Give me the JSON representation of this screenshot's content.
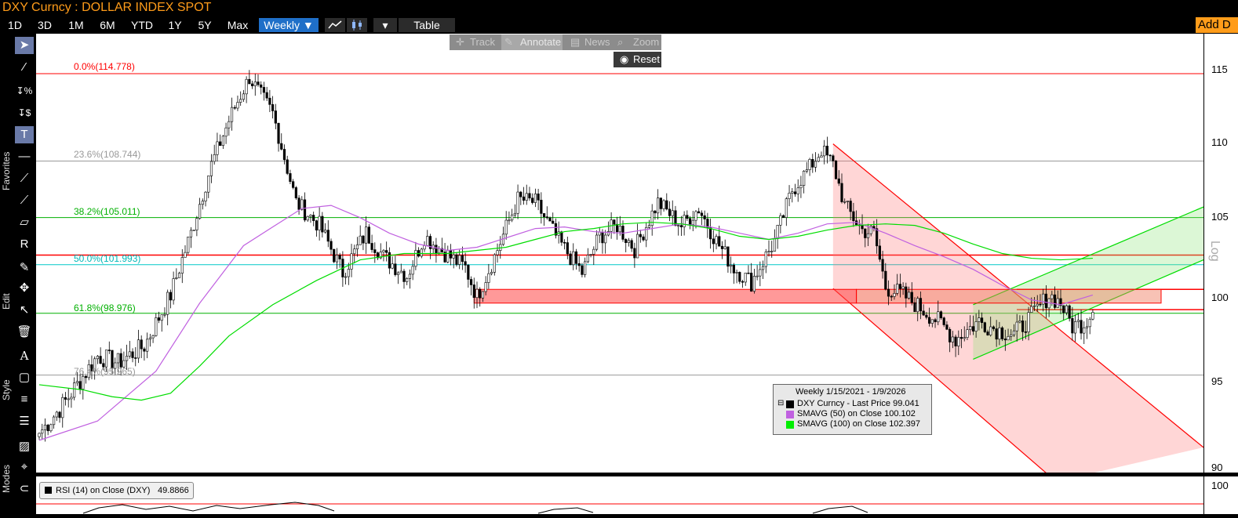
{
  "header": {
    "title": "DXY Curncy : DOLLAR INDEX SPOT",
    "add_data_label": "Add D"
  },
  "toolbar": {
    "periods": [
      "1D",
      "3D",
      "1M",
      "6M",
      "YTD",
      "1Y",
      "5Y",
      "Max"
    ],
    "frequency": "Weekly ▼",
    "line_icon": "line-chart-icon",
    "candle_icon": "candlestick-icon",
    "more": "▾",
    "table_label": "Table"
  },
  "annotate_bar": {
    "track": "Track",
    "annotate": "Annotate",
    "news": "News",
    "zoom": "Zoom",
    "reset": "Reset"
  },
  "side": {
    "favorites": "Favorites",
    "edit": "Edit",
    "style": "Style",
    "modes": "Modes"
  },
  "chart_data": {
    "type": "candlestick",
    "title": "Weekly 1/15/2021 - 1/9/2026",
    "y_scale": "Log",
    "ylim": [
      89.5,
      118
    ],
    "y_ticks": [
      "115",
      "110",
      "105",
      "100",
      "95",
      "90"
    ],
    "fibonacci": [
      {
        "label": "0.0%(114.778)",
        "value": 114.778,
        "color": "#ff0000"
      },
      {
        "label": "23.6%(108.744)",
        "value": 108.744,
        "color": "#999999"
      },
      {
        "label": "38.2%(105.011)",
        "value": 105.011,
        "color": "#00b000"
      },
      {
        "label": "50.0%(101.993)",
        "value": 101.993,
        "color": "#00c8c8"
      },
      {
        "label": "61.8%(98.976)",
        "value": 98.976,
        "color": "#00b000"
      },
      {
        "label": "76.4%(95.265)",
        "value": 95.265,
        "color": "#999999"
      }
    ],
    "horizontal_lines": [
      102.6,
      100.45,
      99.2
    ],
    "series": [
      {
        "name": "DXY Curncy - Last Price",
        "last": "99.041",
        "color": "#000000"
      },
      {
        "name": "SMAVG (50)  on Close",
        "last": "100.102",
        "color": "#c060e0"
      },
      {
        "name": "SMAVG (100)  on Close",
        "last": "102.397",
        "color": "#00dd00"
      }
    ],
    "anchors": [
      [
        0,
        91.9
      ],
      [
        8,
        93.5
      ],
      [
        20,
        96.4
      ],
      [
        27,
        96
      ],
      [
        36,
        97
      ],
      [
        45,
        100.1
      ],
      [
        52,
        104
      ],
      [
        59,
        108.5
      ],
      [
        66,
        112
      ],
      [
        72,
        114.5
      ],
      [
        80,
        112
      ],
      [
        88,
        106
      ],
      [
        96,
        104.5
      ],
      [
        104,
        101.5
      ],
      [
        112,
        104
      ],
      [
        118,
        102.5
      ],
      [
        126,
        101.3
      ],
      [
        132,
        103.8
      ],
      [
        140,
        102.6
      ],
      [
        146,
        101.8
      ],
      [
        150,
        100
      ],
      [
        156,
        102.5
      ],
      [
        164,
        106.2
      ],
      [
        170,
        106
      ],
      [
        178,
        103.5
      ],
      [
        186,
        101.5
      ],
      [
        192,
        103.8
      ],
      [
        198,
        104.5
      ],
      [
        204,
        103
      ],
      [
        212,
        106
      ],
      [
        220,
        104.5
      ],
      [
        226,
        105.6
      ],
      [
        232,
        103.5
      ],
      [
        238,
        101.8
      ],
      [
        244,
        100.9
      ],
      [
        252,
        103.5
      ],
      [
        258,
        106.8
      ],
      [
        264,
        108.3
      ],
      [
        268,
        109.5
      ],
      [
        272,
        108.5
      ],
      [
        276,
        105.8
      ],
      [
        282,
        104.2
      ],
      [
        286,
        104
      ],
      [
        290,
        100.6
      ],
      [
        296,
        100.1
      ],
      [
        302,
        99.3
      ],
      [
        308,
        98.5
      ],
      [
        314,
        97.4
      ],
      [
        322,
        98.5
      ],
      [
        328,
        98
      ],
      [
        334,
        97.7
      ],
      [
        340,
        98.8
      ],
      [
        346,
        100.1
      ],
      [
        350,
        99.6
      ],
      [
        354,
        98.2
      ],
      [
        358,
        98.4
      ],
      [
        361,
        99.04
      ]
    ],
    "sma50": [
      [
        0,
        91.5
      ],
      [
        20,
        92.6
      ],
      [
        40,
        95.5
      ],
      [
        55,
        99.6
      ],
      [
        70,
        103.2
      ],
      [
        80,
        104.4
      ],
      [
        90,
        105.6
      ],
      [
        100,
        105.8
      ],
      [
        110,
        105
      ],
      [
        120,
        104
      ],
      [
        130,
        103.3
      ],
      [
        140,
        102.9
      ],
      [
        150,
        103.1
      ],
      [
        160,
        103.7
      ],
      [
        170,
        104.3
      ],
      [
        180,
        104.4
      ],
      [
        190,
        104.1
      ],
      [
        200,
        104
      ],
      [
        210,
        104.3
      ],
      [
        220,
        104.6
      ],
      [
        230,
        104.4
      ],
      [
        240,
        104
      ],
      [
        250,
        103.6
      ],
      [
        260,
        104
      ],
      [
        270,
        104.6
      ],
      [
        280,
        104.7
      ],
      [
        290,
        104
      ],
      [
        300,
        103.2
      ],
      [
        310,
        102.5
      ],
      [
        320,
        101.7
      ],
      [
        330,
        100.7
      ],
      [
        340,
        99.8
      ],
      [
        350,
        99.5
      ],
      [
        361,
        100.1
      ]
    ],
    "sma100": [
      [
        0,
        94.7
      ],
      [
        15,
        94.4
      ],
      [
        25,
        94
      ],
      [
        35,
        93.8
      ],
      [
        45,
        94.2
      ],
      [
        55,
        95.8
      ],
      [
        65,
        97.6
      ],
      [
        80,
        99.5
      ],
      [
        95,
        101
      ],
      [
        110,
        102.3
      ],
      [
        125,
        102.7
      ],
      [
        140,
        102.7
      ],
      [
        150,
        102.9
      ],
      [
        160,
        103.1
      ],
      [
        170,
        103.6
      ],
      [
        180,
        104.1
      ],
      [
        190,
        104.3
      ],
      [
        200,
        104.6
      ],
      [
        210,
        104.7
      ],
      [
        220,
        104.6
      ],
      [
        230,
        104.3
      ],
      [
        240,
        103.8
      ],
      [
        250,
        103.6
      ],
      [
        260,
        103.8
      ],
      [
        270,
        104.2
      ],
      [
        280,
        104.5
      ],
      [
        290,
        104.6
      ],
      [
        300,
        104.5
      ],
      [
        310,
        104
      ],
      [
        320,
        103.3
      ],
      [
        330,
        102.7
      ],
      [
        340,
        102.4
      ],
      [
        350,
        102.3
      ],
      [
        361,
        102.4
      ]
    ],
    "rsi": {
      "label": "RSI (14)  on Close (DXY)",
      "value": "49.8866",
      "tick": "100"
    }
  }
}
